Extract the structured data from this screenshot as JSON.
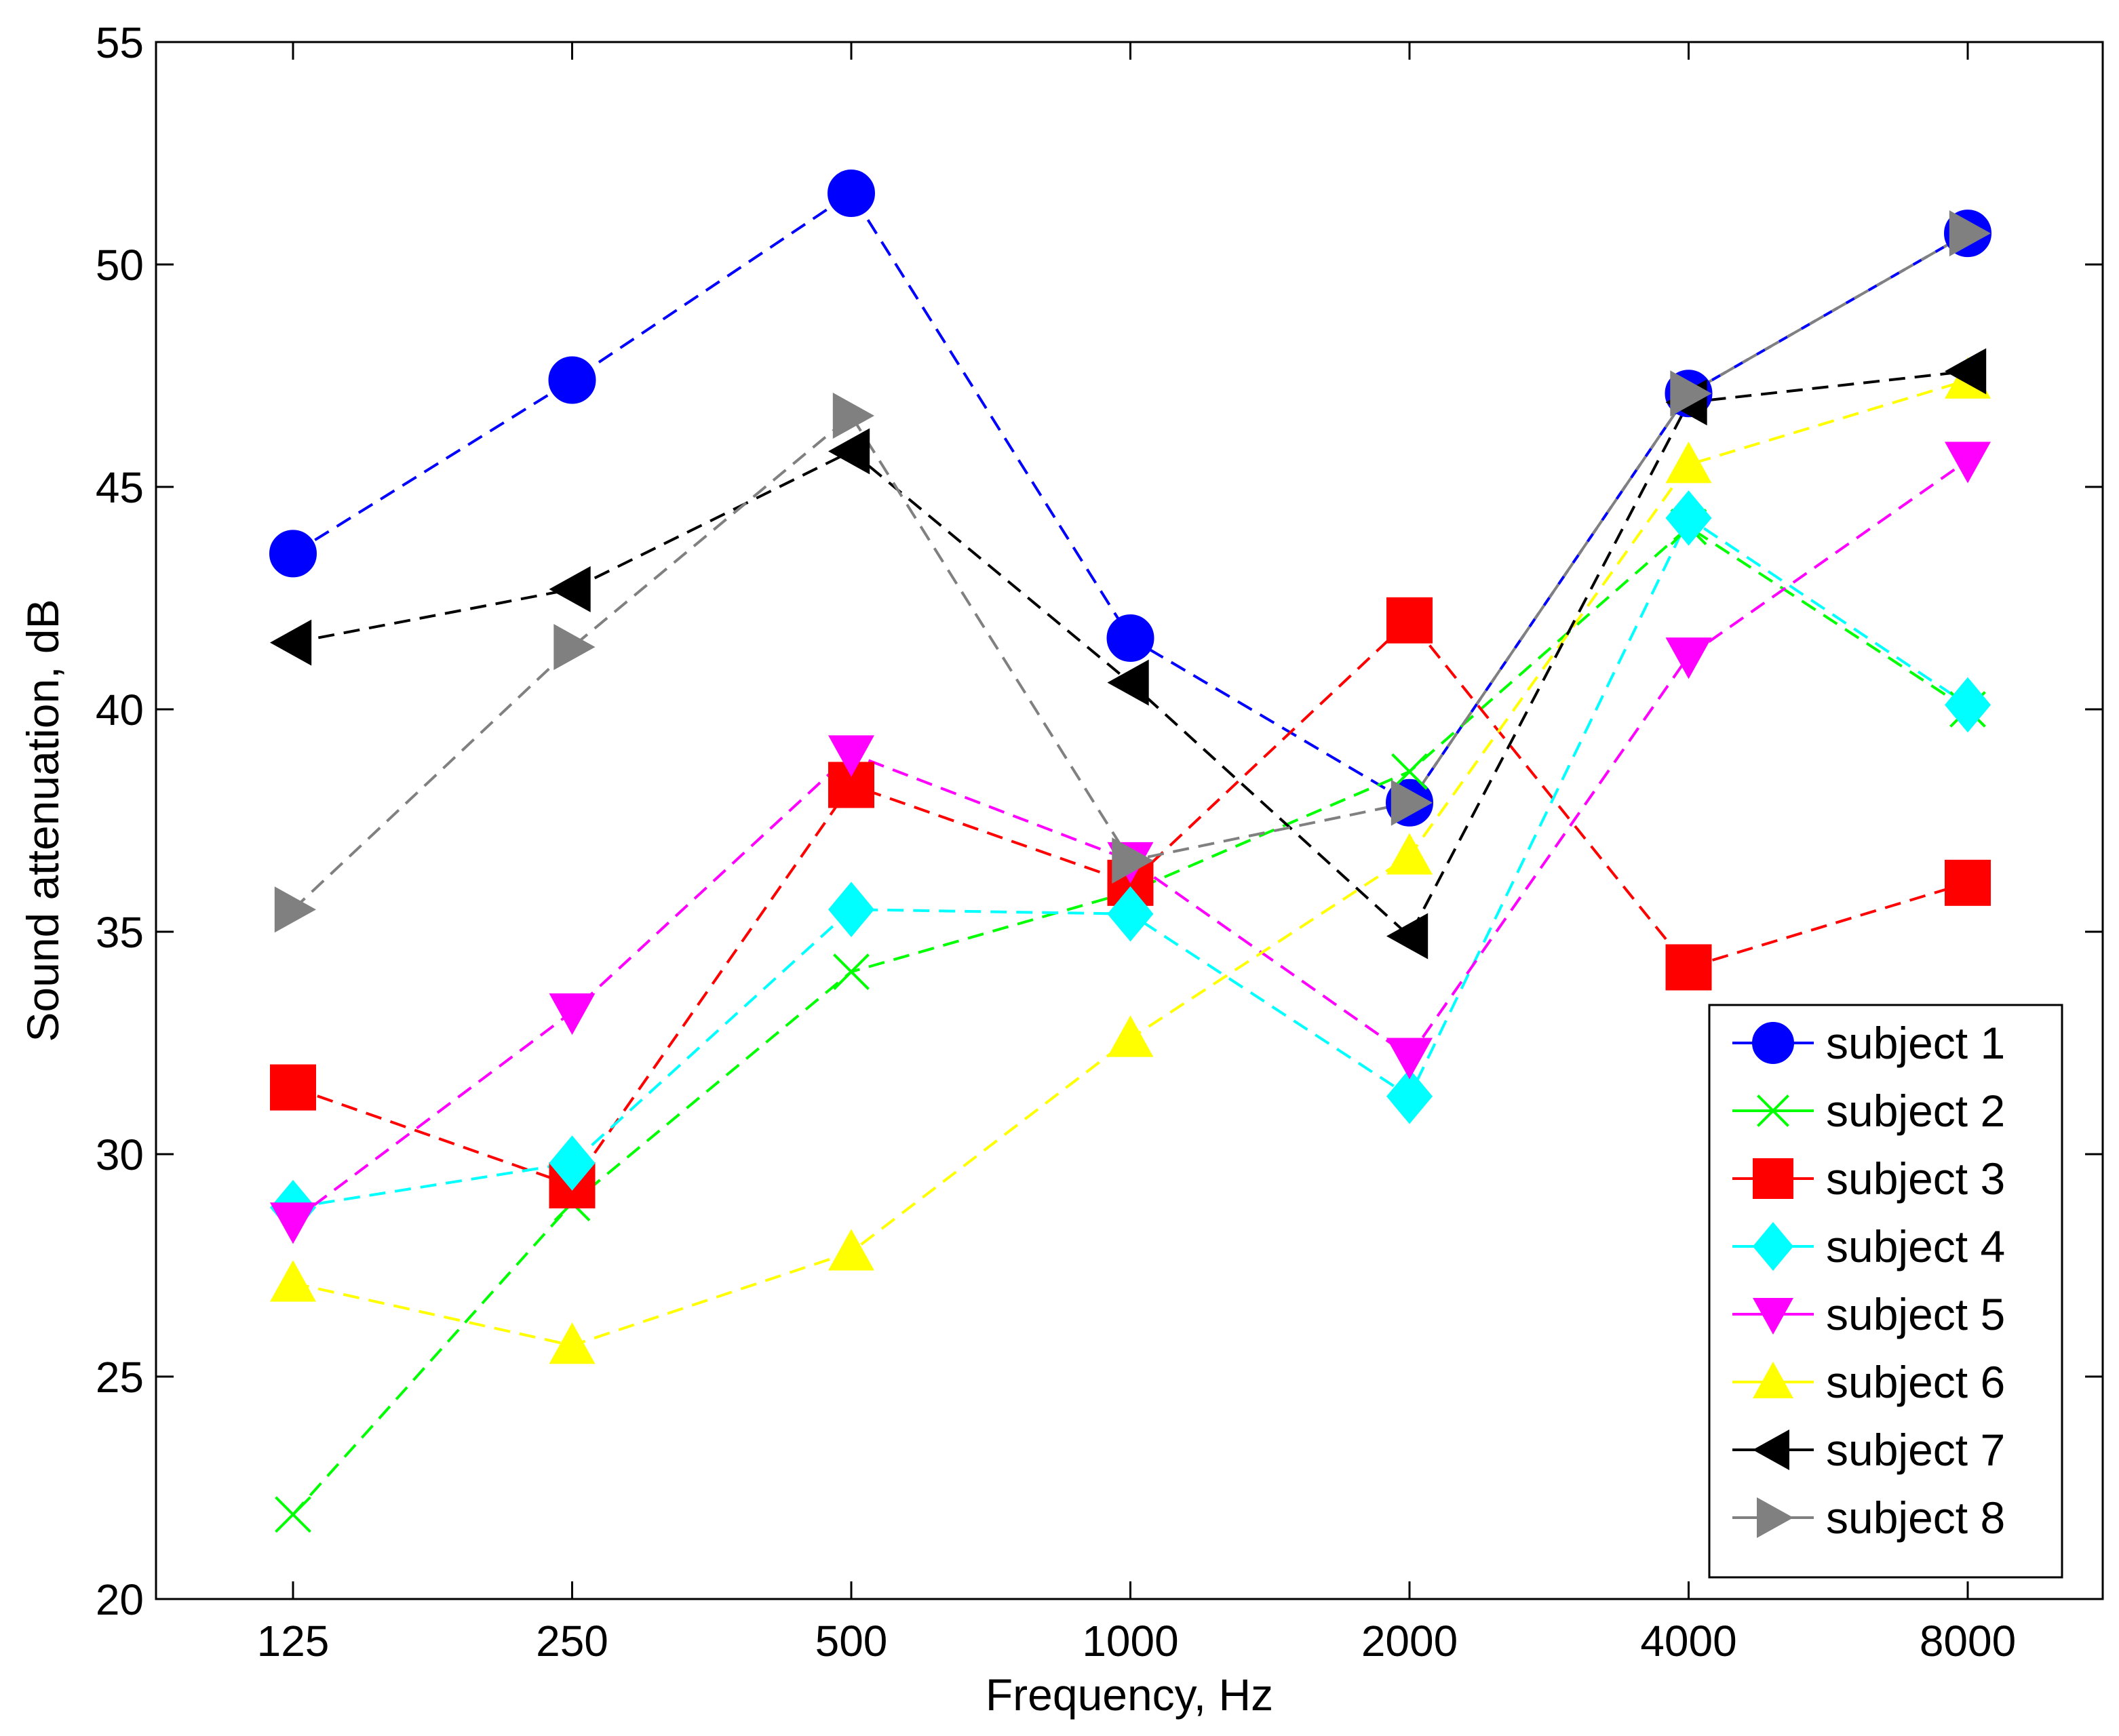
{
  "chart_data": {
    "type": "line",
    "title": "",
    "xlabel": "Frequency, Hz",
    "ylabel": "Sound attenuation, dB",
    "categories": [
      "125",
      "250",
      "500",
      "1000",
      "2000",
      "4000",
      "8000"
    ],
    "ylim": [
      20,
      55
    ],
    "yticks": [
      "20",
      "25",
      "30",
      "35",
      "40",
      "45",
      "50",
      "55"
    ],
    "grid": false,
    "legend_position": "bottom-right",
    "series": [
      {
        "name": "subject 1",
        "color": "#0000ff",
        "marker": "circle",
        "values": [
          43.5,
          47.4,
          51.6,
          41.6,
          37.9,
          47.1,
          50.7
        ]
      },
      {
        "name": "subject 2",
        "color": "#00ff00",
        "marker": "x",
        "values": [
          21.9,
          28.9,
          34.1,
          35.9,
          38.6,
          44.1,
          40.0
        ]
      },
      {
        "name": "subject 3",
        "color": "#ff0000",
        "marker": "square",
        "values": [
          31.5,
          29.3,
          38.3,
          36.1,
          42.0,
          34.2,
          36.1
        ]
      },
      {
        "name": "subject 4",
        "color": "#00ffff",
        "marker": "diamond",
        "values": [
          28.8,
          29.8,
          35.5,
          35.4,
          31.3,
          44.3,
          40.1
        ]
      },
      {
        "name": "subject 5",
        "color": "#ff00ff",
        "marker": "triangle-down",
        "values": [
          28.5,
          33.2,
          39.0,
          36.6,
          32.2,
          41.2,
          45.6
        ]
      },
      {
        "name": "subject 6",
        "color": "#ffff00",
        "marker": "triangle-up",
        "values": [
          27.1,
          25.7,
          27.8,
          32.6,
          36.7,
          45.5,
          47.4
        ]
      },
      {
        "name": "subject 7",
        "color": "#000000",
        "marker": "triangle-left",
        "values": [
          41.5,
          42.7,
          45.8,
          40.6,
          34.9,
          46.9,
          47.6
        ]
      },
      {
        "name": "subject 8",
        "color": "#808080",
        "marker": "triangle-right",
        "values": [
          35.5,
          41.4,
          46.6,
          36.6,
          37.9,
          47.1,
          50.7
        ]
      }
    ]
  }
}
